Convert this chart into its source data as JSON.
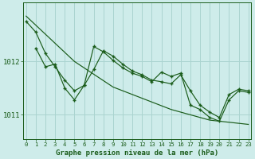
{
  "title": "Graphe pression niveau de la mer (hPa)",
  "bg_color": "#ceecea",
  "grid_color": "#aad4d0",
  "line_color": "#1a5c1a",
  "x_ticks": [
    0,
    1,
    2,
    3,
    4,
    5,
    6,
    7,
    8,
    9,
    10,
    11,
    12,
    13,
    14,
    15,
    16,
    17,
    18,
    19,
    20,
    21,
    22,
    23
  ],
  "y_ticks": [
    1011,
    1012
  ],
  "ylim": [
    1010.55,
    1013.1
  ],
  "xlim": [
    -0.3,
    23.3
  ],
  "line_trend": [
    1012.85,
    1012.68,
    1012.51,
    1012.34,
    1012.17,
    1012.0,
    1011.88,
    1011.76,
    1011.64,
    1011.52,
    1011.45,
    1011.38,
    1011.31,
    1011.24,
    1011.17,
    1011.1,
    1011.05,
    1011.0,
    1010.95,
    1010.9,
    1010.88,
    1010.86,
    1010.84,
    1010.82
  ],
  "line_main": [
    1012.75,
    1012.55,
    1012.15,
    1011.9,
    1011.65,
    1011.45,
    1011.55,
    1011.85,
    1012.2,
    1012.1,
    1011.95,
    1011.82,
    1011.75,
    1011.65,
    1011.62,
    1011.58,
    1011.75,
    1011.45,
    1011.18,
    1011.05,
    1010.95,
    1011.38,
    1011.48,
    1011.45
  ],
  "line_alt": [
    null,
    1012.25,
    1011.9,
    1011.95,
    1011.5,
    1011.28,
    1011.55,
    1012.28,
    1012.18,
    1012.02,
    1011.88,
    1011.78,
    1011.72,
    1011.62,
    1011.8,
    1011.72,
    1011.78,
    1011.18,
    1011.1,
    1010.95,
    1010.88,
    1011.28,
    1011.45,
    1011.42
  ]
}
